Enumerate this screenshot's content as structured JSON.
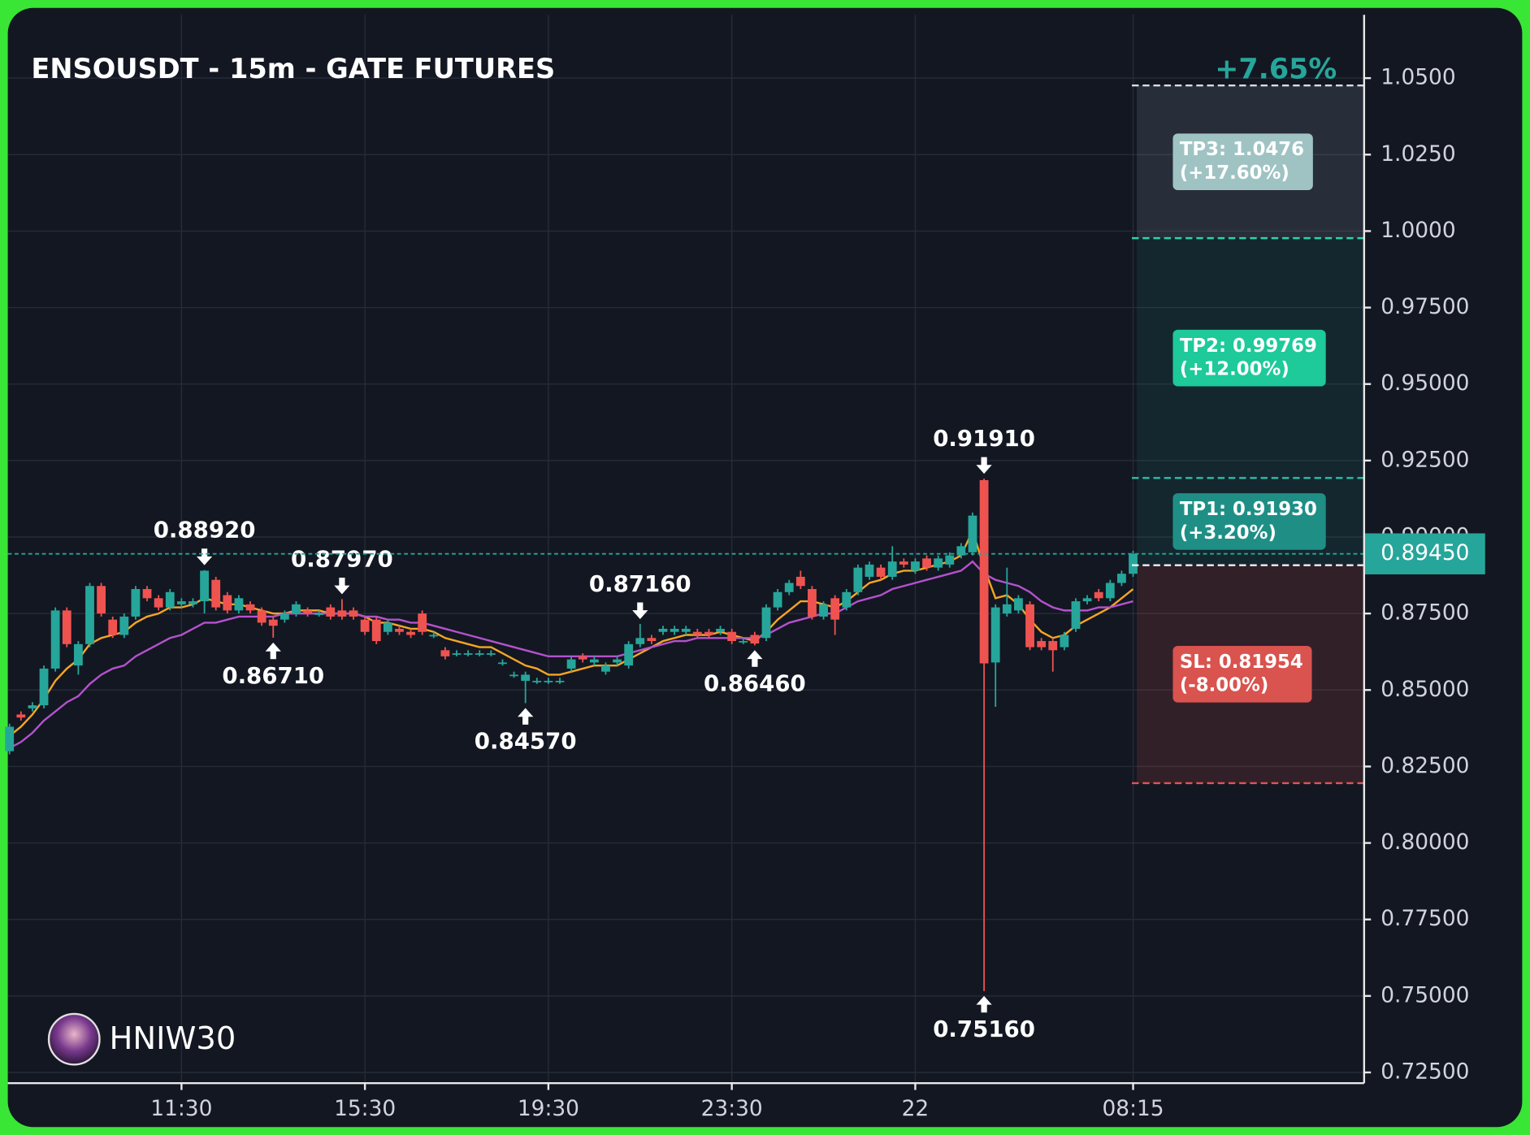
{
  "chart_data": {
    "type": "candlestick",
    "title": "ENSOUSDT - 15m - GATE FUTURES",
    "change_label": "+7.65%",
    "watermark": "HNIW30",
    "up_color": "#26a69a",
    "down_color": "#ef5350",
    "categories": [
      null,
      null,
      null,
      null,
      null,
      null,
      null,
      null,
      null,
      null,
      null,
      null,
      null,
      null,
      null,
      "11:30",
      null,
      null,
      null,
      null,
      null,
      null,
      null,
      null,
      null,
      null,
      null,
      null,
      null,
      null,
      null,
      "15:30",
      null,
      null,
      null,
      null,
      null,
      null,
      null,
      null,
      null,
      null,
      null,
      null,
      null,
      null,
      null,
      "19:30",
      null,
      null,
      null,
      null,
      null,
      null,
      null,
      null,
      null,
      null,
      null,
      null,
      null,
      null,
      null,
      "23:30",
      null,
      null,
      null,
      null,
      null,
      null,
      null,
      null,
      null,
      null,
      null,
      null,
      null,
      null,
      null,
      "22",
      null,
      null,
      null,
      null,
      null,
      null,
      null,
      null,
      null,
      null,
      null,
      null,
      null,
      null,
      null,
      null,
      null,
      null,
      "08:15"
    ],
    "open": [
      0.83,
      0.842,
      0.844,
      0.845,
      0.857,
      0.876,
      0.858,
      0.865,
      0.884,
      0.873,
      0.868,
      0.874,
      0.883,
      0.88,
      0.877,
      0.878,
      0.878,
      0.879,
      0.886,
      0.881,
      0.876,
      0.878,
      0.876,
      0.873,
      0.873,
      0.875,
      0.876,
      0.875,
      0.877,
      0.876,
      0.876,
      0.873,
      0.873,
      0.869,
      0.87,
      0.869,
      0.875,
      0.868,
      0.863,
      0.862,
      0.862,
      0.862,
      0.862,
      0.859,
      0.855,
      0.853,
      0.853,
      0.853,
      0.853,
      0.857,
      0.861,
      0.859,
      0.856,
      0.859,
      0.858,
      0.865,
      0.867,
      0.869,
      0.869,
      0.869,
      0.869,
      0.869,
      0.869,
      0.869,
      0.866,
      0.868,
      0.867,
      0.877,
      0.882,
      0.887,
      0.883,
      0.874,
      0.88,
      0.877,
      0.882,
      0.887,
      0.89,
      0.887,
      0.892,
      0.889,
      0.893,
      0.89,
      0.891,
      0.894,
      0.895,
      0.9186,
      0.859,
      0.875,
      0.876,
      0.878,
      0.866,
      0.866,
      0.864,
      0.87,
      0.879,
      0.882,
      0.88,
      0.885,
      0.888
    ],
    "high": [
      0.839,
      0.843,
      0.846,
      0.858,
      0.877,
      0.877,
      0.866,
      0.885,
      0.885,
      0.874,
      0.875,
      0.884,
      0.884,
      0.881,
      0.883,
      0.88,
      0.88,
      0.8892,
      0.887,
      0.882,
      0.881,
      0.879,
      0.877,
      0.874,
      0.876,
      0.879,
      0.877,
      0.876,
      0.878,
      0.8797,
      0.877,
      0.874,
      0.874,
      0.873,
      0.871,
      0.87,
      0.876,
      0.869,
      0.864,
      0.863,
      0.863,
      0.863,
      0.863,
      0.86,
      0.856,
      0.856,
      0.854,
      0.854,
      0.854,
      0.861,
      0.862,
      0.861,
      0.859,
      0.861,
      0.866,
      0.8716,
      0.868,
      0.871,
      0.871,
      0.871,
      0.87,
      0.87,
      0.871,
      0.87,
      0.867,
      0.869,
      0.878,
      0.883,
      0.886,
      0.889,
      0.884,
      0.879,
      0.881,
      0.883,
      0.891,
      0.892,
      0.891,
      0.897,
      0.893,
      0.893,
      0.894,
      0.894,
      0.895,
      0.898,
      0.908,
      0.9191,
      0.878,
      0.89,
      0.881,
      0.879,
      0.867,
      0.867,
      0.869,
      0.88,
      0.881,
      0.883,
      0.886,
      0.889,
      0.8955
    ],
    "low": [
      0.829,
      0.84,
      0.843,
      0.844,
      0.856,
      0.864,
      0.855,
      0.864,
      0.874,
      0.867,
      0.867,
      0.873,
      0.879,
      0.876,
      0.876,
      0.877,
      0.877,
      0.875,
      0.876,
      0.875,
      0.875,
      0.875,
      0.871,
      0.8671,
      0.872,
      0.874,
      0.874,
      0.874,
      0.873,
      0.873,
      0.873,
      0.868,
      0.865,
      0.868,
      0.868,
      0.867,
      0.868,
      0.867,
      0.86,
      0.861,
      0.861,
      0.861,
      0.861,
      0.858,
      0.854,
      0.8457,
      0.852,
      0.852,
      0.852,
      0.856,
      0.859,
      0.858,
      0.855,
      0.858,
      0.857,
      0.864,
      0.865,
      0.868,
      0.868,
      0.868,
      0.867,
      0.867,
      0.868,
      0.865,
      0.865,
      0.8646,
      0.866,
      0.876,
      0.881,
      0.883,
      0.873,
      0.873,
      0.868,
      0.876,
      0.881,
      0.886,
      0.886,
      0.886,
      0.89,
      0.888,
      0.889,
      0.889,
      0.89,
      0.893,
      0.894,
      0.7516,
      0.8445,
      0.874,
      0.875,
      0.863,
      0.863,
      0.856,
      0.863,
      0.869,
      0.878,
      0.879,
      0.879,
      0.884,
      0.887
    ],
    "close": [
      0.838,
      0.841,
      0.845,
      0.857,
      0.876,
      0.865,
      0.865,
      0.884,
      0.875,
      0.868,
      0.874,
      0.883,
      0.88,
      0.877,
      0.882,
      0.879,
      0.879,
      0.889,
      0.877,
      0.876,
      0.88,
      0.876,
      0.872,
      0.871,
      0.875,
      0.878,
      0.875,
      0.875,
      0.874,
      0.874,
      0.874,
      0.869,
      0.866,
      0.872,
      0.869,
      0.868,
      0.869,
      0.868,
      0.861,
      0.862,
      0.862,
      0.862,
      0.862,
      0.859,
      0.855,
      0.855,
      0.853,
      0.853,
      0.853,
      0.86,
      0.86,
      0.86,
      0.858,
      0.86,
      0.865,
      0.867,
      0.866,
      0.87,
      0.87,
      0.87,
      0.868,
      0.868,
      0.87,
      0.866,
      0.866,
      0.8652,
      0.877,
      0.882,
      0.885,
      0.884,
      0.874,
      0.878,
      0.873,
      0.882,
      0.89,
      0.891,
      0.887,
      0.892,
      0.891,
      0.892,
      0.89,
      0.893,
      0.894,
      0.897,
      0.907,
      0.8587,
      0.877,
      0.878,
      0.88,
      0.864,
      0.864,
      0.863,
      0.868,
      0.879,
      0.88,
      0.88,
      0.885,
      0.888,
      0.8945
    ],
    "lines": [
      {
        "color": "#f5a623",
        "values": [
          0.835,
          0.838,
          0.842,
          0.847,
          0.853,
          0.857,
          0.86,
          0.865,
          0.867,
          0.868,
          0.869,
          0.872,
          0.874,
          0.875,
          0.877,
          0.877,
          0.878,
          0.88,
          0.879,
          0.878,
          0.878,
          0.877,
          0.876,
          0.875,
          0.875,
          0.876,
          0.876,
          0.876,
          0.875,
          0.875,
          0.875,
          0.874,
          0.872,
          0.872,
          0.871,
          0.87,
          0.87,
          0.869,
          0.867,
          0.866,
          0.865,
          0.864,
          0.864,
          0.862,
          0.86,
          0.858,
          0.857,
          0.855,
          0.855,
          0.856,
          0.857,
          0.858,
          0.858,
          0.858,
          0.86,
          0.862,
          0.864,
          0.866,
          0.867,
          0.868,
          0.868,
          0.868,
          0.869,
          0.868,
          0.867,
          0.866,
          0.869,
          0.873,
          0.876,
          0.879,
          0.879,
          0.878,
          0.877,
          0.879,
          0.882,
          0.885,
          0.886,
          0.888,
          0.889,
          0.889,
          0.89,
          0.891,
          0.892,
          0.894,
          0.902,
          0.89,
          0.88,
          0.881,
          0.878,
          0.873,
          0.869,
          0.867,
          0.868,
          0.871,
          0.873,
          0.875,
          0.877,
          0.88,
          0.883
        ]
      },
      {
        "color": "#b452cd",
        "values": [
          0.831,
          0.833,
          0.836,
          0.84,
          0.843,
          0.846,
          0.848,
          0.852,
          0.855,
          0.857,
          0.858,
          0.861,
          0.863,
          0.865,
          0.867,
          0.868,
          0.87,
          0.872,
          0.872,
          0.873,
          0.874,
          0.874,
          0.874,
          0.874,
          0.875,
          0.875,
          0.875,
          0.875,
          0.875,
          0.875,
          0.875,
          0.874,
          0.874,
          0.873,
          0.873,
          0.872,
          0.872,
          0.871,
          0.87,
          0.869,
          0.868,
          0.867,
          0.866,
          0.865,
          0.864,
          0.863,
          0.862,
          0.861,
          0.861,
          0.861,
          0.861,
          0.861,
          0.861,
          0.861,
          0.862,
          0.863,
          0.864,
          0.865,
          0.866,
          0.866,
          0.867,
          0.867,
          0.867,
          0.867,
          0.867,
          0.867,
          0.868,
          0.87,
          0.872,
          0.873,
          0.874,
          0.875,
          0.875,
          0.877,
          0.879,
          0.88,
          0.881,
          0.883,
          0.884,
          0.885,
          0.886,
          0.887,
          0.888,
          0.889,
          0.892,
          0.888,
          0.886,
          0.885,
          0.884,
          0.882,
          0.879,
          0.877,
          0.876,
          0.876,
          0.876,
          0.877,
          0.877,
          0.878,
          0.879
        ]
      }
    ],
    "annotations": [
      {
        "kind": "high",
        "value": 0.8892,
        "label": "0.88920"
      },
      {
        "kind": "high",
        "value": 0.8797,
        "label": "0.87970"
      },
      {
        "kind": "low",
        "value": 0.8671,
        "label": "0.86710"
      },
      {
        "kind": "low",
        "value": 0.8457,
        "label": "0.84570"
      },
      {
        "kind": "high",
        "value": 0.8716,
        "label": "0.87160"
      },
      {
        "kind": "low",
        "value": 0.8646,
        "label": "0.86460"
      },
      {
        "kind": "high",
        "value": 0.9191,
        "label": "0.91910"
      },
      {
        "kind": "low",
        "value": 0.7516,
        "label": "0.75160"
      }
    ],
    "entry": 0.8908,
    "levels": [
      {
        "value": 1.0476,
        "label": "TP3: 1.0476",
        "note": "(+17.60%)",
        "box": "#9fc3c3",
        "line": "#d6dde2",
        "zone": "rgba(150,160,180,0.16)"
      },
      {
        "value": 0.99769,
        "label": "TP2: 0.99769",
        "note": "(+12.00%)",
        "box": "#1ec99a",
        "line": "#2bd4a9",
        "zone": "rgba(30,150,130,0.13)"
      },
      {
        "value": 0.9193,
        "label": "TP1: 0.91930",
        "note": "(+3.20%)",
        "box": "#1f8f86",
        "line": "#2bbfa6",
        "zone": "rgba(30,150,130,0.13)"
      },
      {
        "value": 0.81954,
        "label": "SL: 0.81954",
        "note": "(-8.00%)",
        "box": "#d9534f",
        "line": "#e05454",
        "zone": "rgba(210,80,80,0.17)"
      }
    ],
    "last_price": {
      "value": 0.8945,
      "label": "0.89450"
    },
    "ylim": [
      0.7215,
      1.0707
    ],
    "yticks": [
      {
        "value": 0.725,
        "label": "0.72500"
      },
      {
        "value": 0.75,
        "label": "0.75000"
      },
      {
        "value": 0.775,
        "label": "0.77500"
      },
      {
        "value": 0.8,
        "label": "0.80000"
      },
      {
        "value": 0.825,
        "label": "0.82500"
      },
      {
        "value": 0.85,
        "label": "0.85000"
      },
      {
        "value": 0.875,
        "label": "0.87500"
      },
      {
        "value": 0.9,
        "label": "0.90000"
      },
      {
        "value": 0.925,
        "label": "0.92500"
      },
      {
        "value": 0.95,
        "label": "0.95000"
      },
      {
        "value": 0.975,
        "label": "0.97500"
      },
      {
        "value": 1.0,
        "label": "1.0000"
      },
      {
        "value": 1.025,
        "label": "1.0250"
      },
      {
        "value": 1.05,
        "label": "1.0500"
      }
    ],
    "grid": true
  }
}
